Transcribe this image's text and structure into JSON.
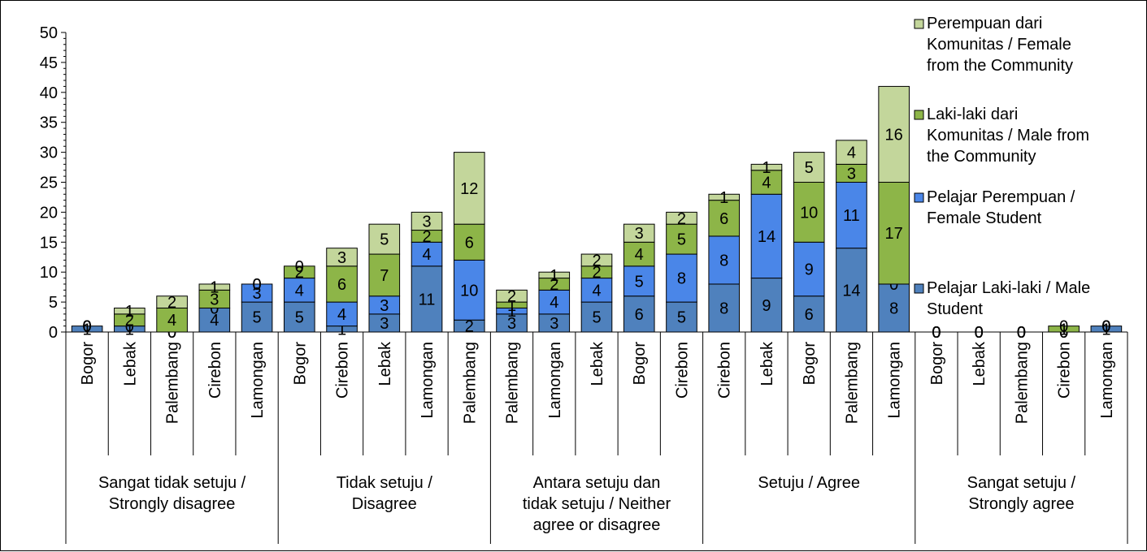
{
  "chart_data": {
    "type": "bar",
    "stacked": true,
    "ylim": [
      0,
      50
    ],
    "yticks": [
      0,
      5,
      10,
      15,
      20,
      25,
      30,
      35,
      40,
      45,
      50
    ],
    "legend_position": "right",
    "groups": [
      {
        "label": [
          "Sangat tidak setuju /",
          "Strongly disagree"
        ],
        "categories": [
          "Bogor",
          "Lebak",
          "Palembang",
          "Cirebon",
          "Lamongan"
        ]
      },
      {
        "label": [
          "Tidak setuju /",
          "Disagree"
        ],
        "categories": [
          "Bogor",
          "Cirebon",
          "Lebak",
          "Lamongan",
          "Palembang"
        ]
      },
      {
        "label": [
          "Antara setuju dan",
          "tidak setuju / Neither",
          "agree or disagree"
        ],
        "categories": [
          "Palembang",
          "Lamongan",
          "Lebak",
          "Bogor",
          "Cirebon"
        ]
      },
      {
        "label": [
          "Setuju / Agree"
        ],
        "categories": [
          "Cirebon",
          "Lebak",
          "Bogor",
          "Palembang",
          "Lamongan"
        ]
      },
      {
        "label": [
          "Sangat setuju /",
          "Strongly agree"
        ],
        "categories": [
          "Bogor",
          "Lebak",
          "Palembang",
          "Cirebon",
          "Lamongan"
        ]
      }
    ],
    "series": [
      {
        "name": [
          "Pelajar Laki-laki / Male",
          "Student"
        ],
        "color": "#4F81BD",
        "values": [
          1,
          1,
          0,
          4,
          5,
          5,
          1,
          3,
          11,
          2,
          3,
          3,
          5,
          6,
          5,
          8,
          9,
          6,
          14,
          8,
          0,
          0,
          0,
          0,
          1
        ]
      },
      {
        "name": [
          "Pelajar Perempuan /",
          "Female Student"
        ],
        "color": "#4A86E8",
        "values": [
          0,
          0,
          0,
          0,
          3,
          4,
          4,
          3,
          4,
          10,
          1,
          4,
          4,
          5,
          8,
          8,
          14,
          9,
          11,
          0,
          0,
          0,
          0,
          0,
          0
        ]
      },
      {
        "name": [
          "Laki-laki dari",
          "Komunitas / Male from",
          "the Community"
        ],
        "color": "#8DB548",
        "values": [
          0,
          2,
          4,
          3,
          0,
          2,
          6,
          7,
          2,
          6,
          1,
          2,
          2,
          4,
          5,
          6,
          4,
          10,
          3,
          17,
          0,
          0,
          0,
          1,
          0
        ]
      },
      {
        "name": [
          "Perempuan dari",
          "Komunitas / Female",
          "from the Community"
        ],
        "color": "#C3D69B",
        "values": [
          0,
          1,
          2,
          1,
          0,
          0,
          3,
          5,
          3,
          12,
          2,
          1,
          2,
          3,
          2,
          1,
          1,
          5,
          4,
          16,
          0,
          0,
          0,
          0,
          0
        ]
      }
    ]
  }
}
